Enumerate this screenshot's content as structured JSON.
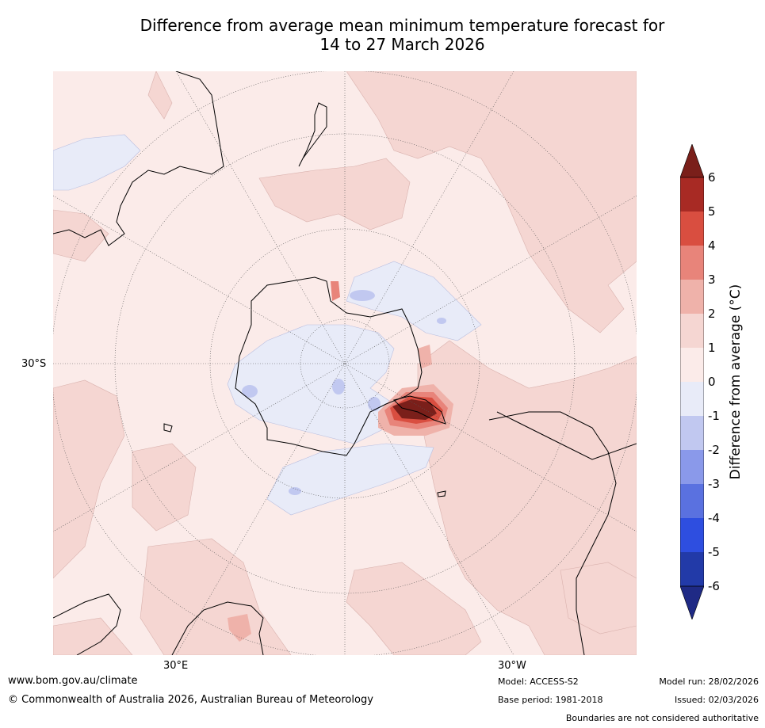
{
  "title": {
    "line1": "Difference from average mean minimum temperature forecast for",
    "line2": "14 to 27 March 2026"
  },
  "map": {
    "projection": "South polar stereographic",
    "lat_label": "30°S",
    "lon_labels": [
      "30°E",
      "30°W"
    ]
  },
  "colorbar": {
    "label": "Difference from average (°C)",
    "ticks": [
      "6",
      "5",
      "4",
      "3",
      "2",
      "1",
      "0",
      "-1",
      "-2",
      "-3",
      "-4",
      "-5",
      "-6"
    ],
    "colors": [
      "#7a1f1a",
      "#a82a24",
      "#d94e40",
      "#e8847a",
      "#efb2aa",
      "#f5d6d2",
      "#fbebe9",
      "#e8ebf8",
      "#c1c8f0",
      "#8a99ea",
      "#5a71e0",
      "#2e4ee0",
      "#223aa8",
      "#1f2a85"
    ]
  },
  "footer": {
    "url": "www.bom.gov.au/climate",
    "copyright": "© Commonwealth of Australia 2026, Australian Bureau of Meteorology",
    "model": "Model: ACCESS-S2",
    "base_period": "Base period: 1981-2018",
    "model_run": "Model run: 28/02/2026",
    "issued": "Issued: 02/03/2026",
    "disclaimer": "Boundaries are not considered authoritative"
  }
}
